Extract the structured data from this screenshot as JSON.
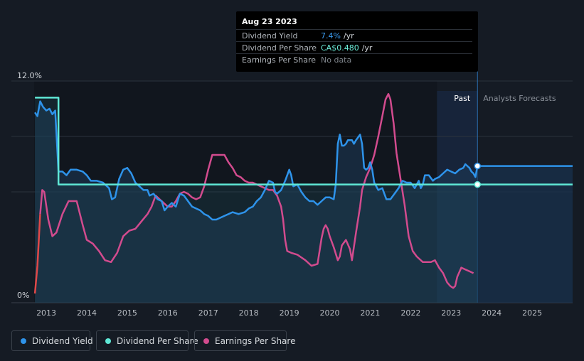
{
  "tooltip": {
    "date": "Aug 23 2023",
    "rows": [
      {
        "label": "Dividend Yield",
        "value": "7.4%",
        "unit": "/yr",
        "color": "#3b9cf0"
      },
      {
        "label": "Dividend Per Share",
        "value": "CA$0.480",
        "unit": "/yr",
        "color": "#6df0dc"
      },
      {
        "label": "Earnings Per Share",
        "value": "No data",
        "unit": "",
        "color": "#7f858c"
      }
    ]
  },
  "legend": [
    {
      "label": "Dividend Yield",
      "color": "#2e93ea"
    },
    {
      "label": "Dividend Per Share",
      "color": "#5fe8d6"
    },
    {
      "label": "Earnings Per Share",
      "color": "#d24b8e"
    }
  ],
  "chart_data": {
    "type": "line",
    "y_tick_labels": [
      "12.0%",
      "0%"
    ],
    "ylim": [
      0,
      12
    ],
    "xlim": [
      2012.7,
      2026.0
    ],
    "x_tick_labels": [
      "2013",
      "2014",
      "2015",
      "2016",
      "2017",
      "2018",
      "2019",
      "2020",
      "2021",
      "2022",
      "2023",
      "2024",
      "2025"
    ],
    "past_label": "Past",
    "forecast_label": "Analysts Forecasts",
    "past_region_start": 2022.65,
    "forecast_start": 2023.65,
    "series": [
      {
        "name": "Dividend Yield",
        "color": "#2e93ea",
        "points": [
          [
            2012.72,
            10.3
          ],
          [
            2012.78,
            10.1
          ],
          [
            2012.85,
            10.9
          ],
          [
            2012.92,
            10.6
          ],
          [
            2013.0,
            10.4
          ],
          [
            2013.08,
            10.5
          ],
          [
            2013.15,
            10.2
          ],
          [
            2013.22,
            10.4
          ],
          [
            2013.3,
            7.1
          ],
          [
            2013.4,
            7.1
          ],
          [
            2013.5,
            6.9
          ],
          [
            2013.6,
            7.2
          ],
          [
            2013.75,
            7.2
          ],
          [
            2013.9,
            7.1
          ],
          [
            2014.0,
            6.9
          ],
          [
            2014.1,
            6.6
          ],
          [
            2014.25,
            6.6
          ],
          [
            2014.4,
            6.5
          ],
          [
            2014.55,
            6.2
          ],
          [
            2014.62,
            5.6
          ],
          [
            2014.7,
            5.7
          ],
          [
            2014.8,
            6.7
          ],
          [
            2014.9,
            7.2
          ],
          [
            2015.0,
            7.3
          ],
          [
            2015.1,
            7.0
          ],
          [
            2015.2,
            6.5
          ],
          [
            2015.3,
            6.3
          ],
          [
            2015.4,
            6.1
          ],
          [
            2015.5,
            6.1
          ],
          [
            2015.55,
            5.8
          ],
          [
            2015.65,
            5.9
          ],
          [
            2015.75,
            5.6
          ],
          [
            2015.85,
            5.5
          ],
          [
            2015.92,
            5.0
          ],
          [
            2016.0,
            5.2
          ],
          [
            2016.1,
            5.4
          ],
          [
            2016.2,
            5.2
          ],
          [
            2016.3,
            5.9
          ],
          [
            2016.4,
            5.8
          ],
          [
            2016.5,
            5.5
          ],
          [
            2016.6,
            5.2
          ],
          [
            2016.7,
            5.1
          ],
          [
            2016.8,
            5.0
          ],
          [
            2016.9,
            4.8
          ],
          [
            2017.0,
            4.7
          ],
          [
            2017.1,
            4.5
          ],
          [
            2017.2,
            4.5
          ],
          [
            2017.3,
            4.6
          ],
          [
            2017.4,
            4.7
          ],
          [
            2017.5,
            4.8
          ],
          [
            2017.6,
            4.9
          ],
          [
            2017.75,
            4.8
          ],
          [
            2017.9,
            4.9
          ],
          [
            2018.0,
            5.1
          ],
          [
            2018.1,
            5.2
          ],
          [
            2018.2,
            5.5
          ],
          [
            2018.3,
            5.7
          ],
          [
            2018.4,
            6.1
          ],
          [
            2018.5,
            6.6
          ],
          [
            2018.6,
            6.5
          ],
          [
            2018.65,
            6.0
          ],
          [
            2018.7,
            5.9
          ],
          [
            2018.8,
            6.1
          ],
          [
            2018.9,
            6.6
          ],
          [
            2019.0,
            7.2
          ],
          [
            2019.05,
            6.9
          ],
          [
            2019.1,
            6.3
          ],
          [
            2019.2,
            6.4
          ],
          [
            2019.3,
            6.0
          ],
          [
            2019.4,
            5.7
          ],
          [
            2019.5,
            5.5
          ],
          [
            2019.6,
            5.5
          ],
          [
            2019.7,
            5.3
          ],
          [
            2019.8,
            5.5
          ],
          [
            2019.9,
            5.7
          ],
          [
            2020.0,
            5.7
          ],
          [
            2020.1,
            5.6
          ],
          [
            2020.15,
            6.4
          ],
          [
            2020.2,
            8.6
          ],
          [
            2020.25,
            9.1
          ],
          [
            2020.3,
            8.5
          ],
          [
            2020.35,
            8.5
          ],
          [
            2020.4,
            8.6
          ],
          [
            2020.45,
            8.8
          ],
          [
            2020.55,
            8.8
          ],
          [
            2020.6,
            8.6
          ],
          [
            2020.65,
            8.8
          ],
          [
            2020.75,
            9.1
          ],
          [
            2020.8,
            8.6
          ],
          [
            2020.85,
            7.3
          ],
          [
            2020.9,
            7.2
          ],
          [
            2020.95,
            7.3
          ],
          [
            2021.0,
            7.6
          ],
          [
            2021.05,
            7.2
          ],
          [
            2021.1,
            6.5
          ],
          [
            2021.2,
            6.1
          ],
          [
            2021.3,
            6.2
          ],
          [
            2021.35,
            5.9
          ],
          [
            2021.4,
            5.6
          ],
          [
            2021.5,
            5.6
          ],
          [
            2021.6,
            5.9
          ],
          [
            2021.7,
            6.2
          ],
          [
            2021.8,
            6.6
          ],
          [
            2021.9,
            6.5
          ],
          [
            2022.0,
            6.5
          ],
          [
            2022.1,
            6.2
          ],
          [
            2022.2,
            6.6
          ],
          [
            2022.25,
            6.2
          ],
          [
            2022.3,
            6.4
          ],
          [
            2022.35,
            6.9
          ],
          [
            2022.45,
            6.9
          ],
          [
            2022.55,
            6.6
          ],
          [
            2022.6,
            6.7
          ],
          [
            2022.7,
            6.8
          ],
          [
            2022.8,
            7.0
          ],
          [
            2022.9,
            7.2
          ],
          [
            2023.0,
            7.1
          ],
          [
            2023.1,
            7.0
          ],
          [
            2023.2,
            7.2
          ],
          [
            2023.3,
            7.3
          ],
          [
            2023.35,
            7.5
          ],
          [
            2023.45,
            7.3
          ],
          [
            2023.5,
            7.1
          ],
          [
            2023.55,
            7.0
          ],
          [
            2023.6,
            6.8
          ],
          [
            2023.65,
            7.4
          ]
        ]
      },
      {
        "name": "Dividend Per Share",
        "color": "#5fe8d6",
        "points": [
          [
            2012.72,
            11.1
          ],
          [
            2013.3,
            11.1
          ],
          [
            2013.3,
            6.4
          ],
          [
            2023.65,
            6.4
          ]
        ]
      },
      {
        "name": "Earnings Per Share",
        "color": "#d24b8e",
        "points": [
          [
            2012.72,
            0.5
          ],
          [
            2012.78,
            2.0
          ],
          [
            2012.85,
            4.8
          ],
          [
            2012.9,
            6.1
          ],
          [
            2012.95,
            6.0
          ],
          [
            2013.05,
            4.5
          ],
          [
            2013.15,
            3.6
          ],
          [
            2013.25,
            3.8
          ],
          [
            2013.4,
            4.8
          ],
          [
            2013.55,
            5.5
          ],
          [
            2013.75,
            5.5
          ],
          [
            2013.9,
            4.2
          ],
          [
            2014.0,
            3.4
          ],
          [
            2014.15,
            3.2
          ],
          [
            2014.3,
            2.8
          ],
          [
            2014.45,
            2.3
          ],
          [
            2014.6,
            2.2
          ],
          [
            2014.75,
            2.7
          ],
          [
            2014.9,
            3.6
          ],
          [
            2015.05,
            3.9
          ],
          [
            2015.2,
            4.0
          ],
          [
            2015.35,
            4.4
          ],
          [
            2015.5,
            4.8
          ],
          [
            2015.6,
            5.2
          ],
          [
            2015.7,
            5.8
          ],
          [
            2015.8,
            5.6
          ],
          [
            2015.9,
            5.4
          ],
          [
            2016.0,
            5.2
          ],
          [
            2016.1,
            5.2
          ],
          [
            2016.2,
            5.5
          ],
          [
            2016.3,
            5.9
          ],
          [
            2016.4,
            6.0
          ],
          [
            2016.5,
            5.9
          ],
          [
            2016.6,
            5.7
          ],
          [
            2016.7,
            5.6
          ],
          [
            2016.8,
            5.7
          ],
          [
            2016.9,
            6.3
          ],
          [
            2017.0,
            7.2
          ],
          [
            2017.1,
            8.0
          ],
          [
            2017.2,
            8.0
          ],
          [
            2017.3,
            8.0
          ],
          [
            2017.4,
            8.0
          ],
          [
            2017.5,
            7.6
          ],
          [
            2017.6,
            7.3
          ],
          [
            2017.7,
            6.9
          ],
          [
            2017.8,
            6.8
          ],
          [
            2017.9,
            6.6
          ],
          [
            2018.0,
            6.5
          ],
          [
            2018.1,
            6.5
          ],
          [
            2018.2,
            6.4
          ],
          [
            2018.3,
            6.3
          ],
          [
            2018.4,
            6.2
          ],
          [
            2018.5,
            6.1
          ],
          [
            2018.6,
            6.1
          ],
          [
            2018.7,
            5.8
          ],
          [
            2018.8,
            5.2
          ],
          [
            2018.85,
            4.5
          ],
          [
            2018.9,
            3.4
          ],
          [
            2018.95,
            2.8
          ],
          [
            2019.05,
            2.7
          ],
          [
            2019.2,
            2.6
          ],
          [
            2019.4,
            2.3
          ],
          [
            2019.55,
            2.0
          ],
          [
            2019.7,
            2.1
          ],
          [
            2019.8,
            3.5
          ],
          [
            2019.85,
            4.0
          ],
          [
            2019.9,
            4.2
          ],
          [
            2019.95,
            4.0
          ],
          [
            2020.0,
            3.6
          ],
          [
            2020.1,
            3.0
          ],
          [
            2020.2,
            2.3
          ],
          [
            2020.25,
            2.5
          ],
          [
            2020.3,
            3.1
          ],
          [
            2020.4,
            3.4
          ],
          [
            2020.5,
            2.9
          ],
          [
            2020.55,
            2.3
          ],
          [
            2020.65,
            3.8
          ],
          [
            2020.75,
            5.2
          ],
          [
            2020.8,
            6.1
          ],
          [
            2020.9,
            6.8
          ],
          [
            2021.0,
            7.3
          ],
          [
            2021.1,
            8.0
          ],
          [
            2021.2,
            9.0
          ],
          [
            2021.3,
            10.1
          ],
          [
            2021.38,
            11.0
          ],
          [
            2021.45,
            11.3
          ],
          [
            2021.5,
            11.0
          ],
          [
            2021.58,
            9.7
          ],
          [
            2021.65,
            8.1
          ],
          [
            2021.75,
            6.7
          ],
          [
            2021.85,
            5.3
          ],
          [
            2021.95,
            3.6
          ],
          [
            2022.05,
            2.8
          ],
          [
            2022.15,
            2.5
          ],
          [
            2022.3,
            2.2
          ],
          [
            2022.5,
            2.2
          ],
          [
            2022.6,
            2.3
          ],
          [
            2022.7,
            1.9
          ],
          [
            2022.8,
            1.6
          ],
          [
            2022.9,
            1.1
          ],
          [
            2022.98,
            0.9
          ],
          [
            2023.05,
            0.8
          ],
          [
            2023.1,
            0.9
          ],
          [
            2023.15,
            1.4
          ],
          [
            2023.25,
            1.9
          ],
          [
            2023.35,
            1.8
          ],
          [
            2023.45,
            1.7
          ],
          [
            2023.55,
            1.6
          ]
        ]
      }
    ],
    "highlight_date": 2023.65,
    "highlight_values": [
      7.4,
      6.4
    ]
  }
}
